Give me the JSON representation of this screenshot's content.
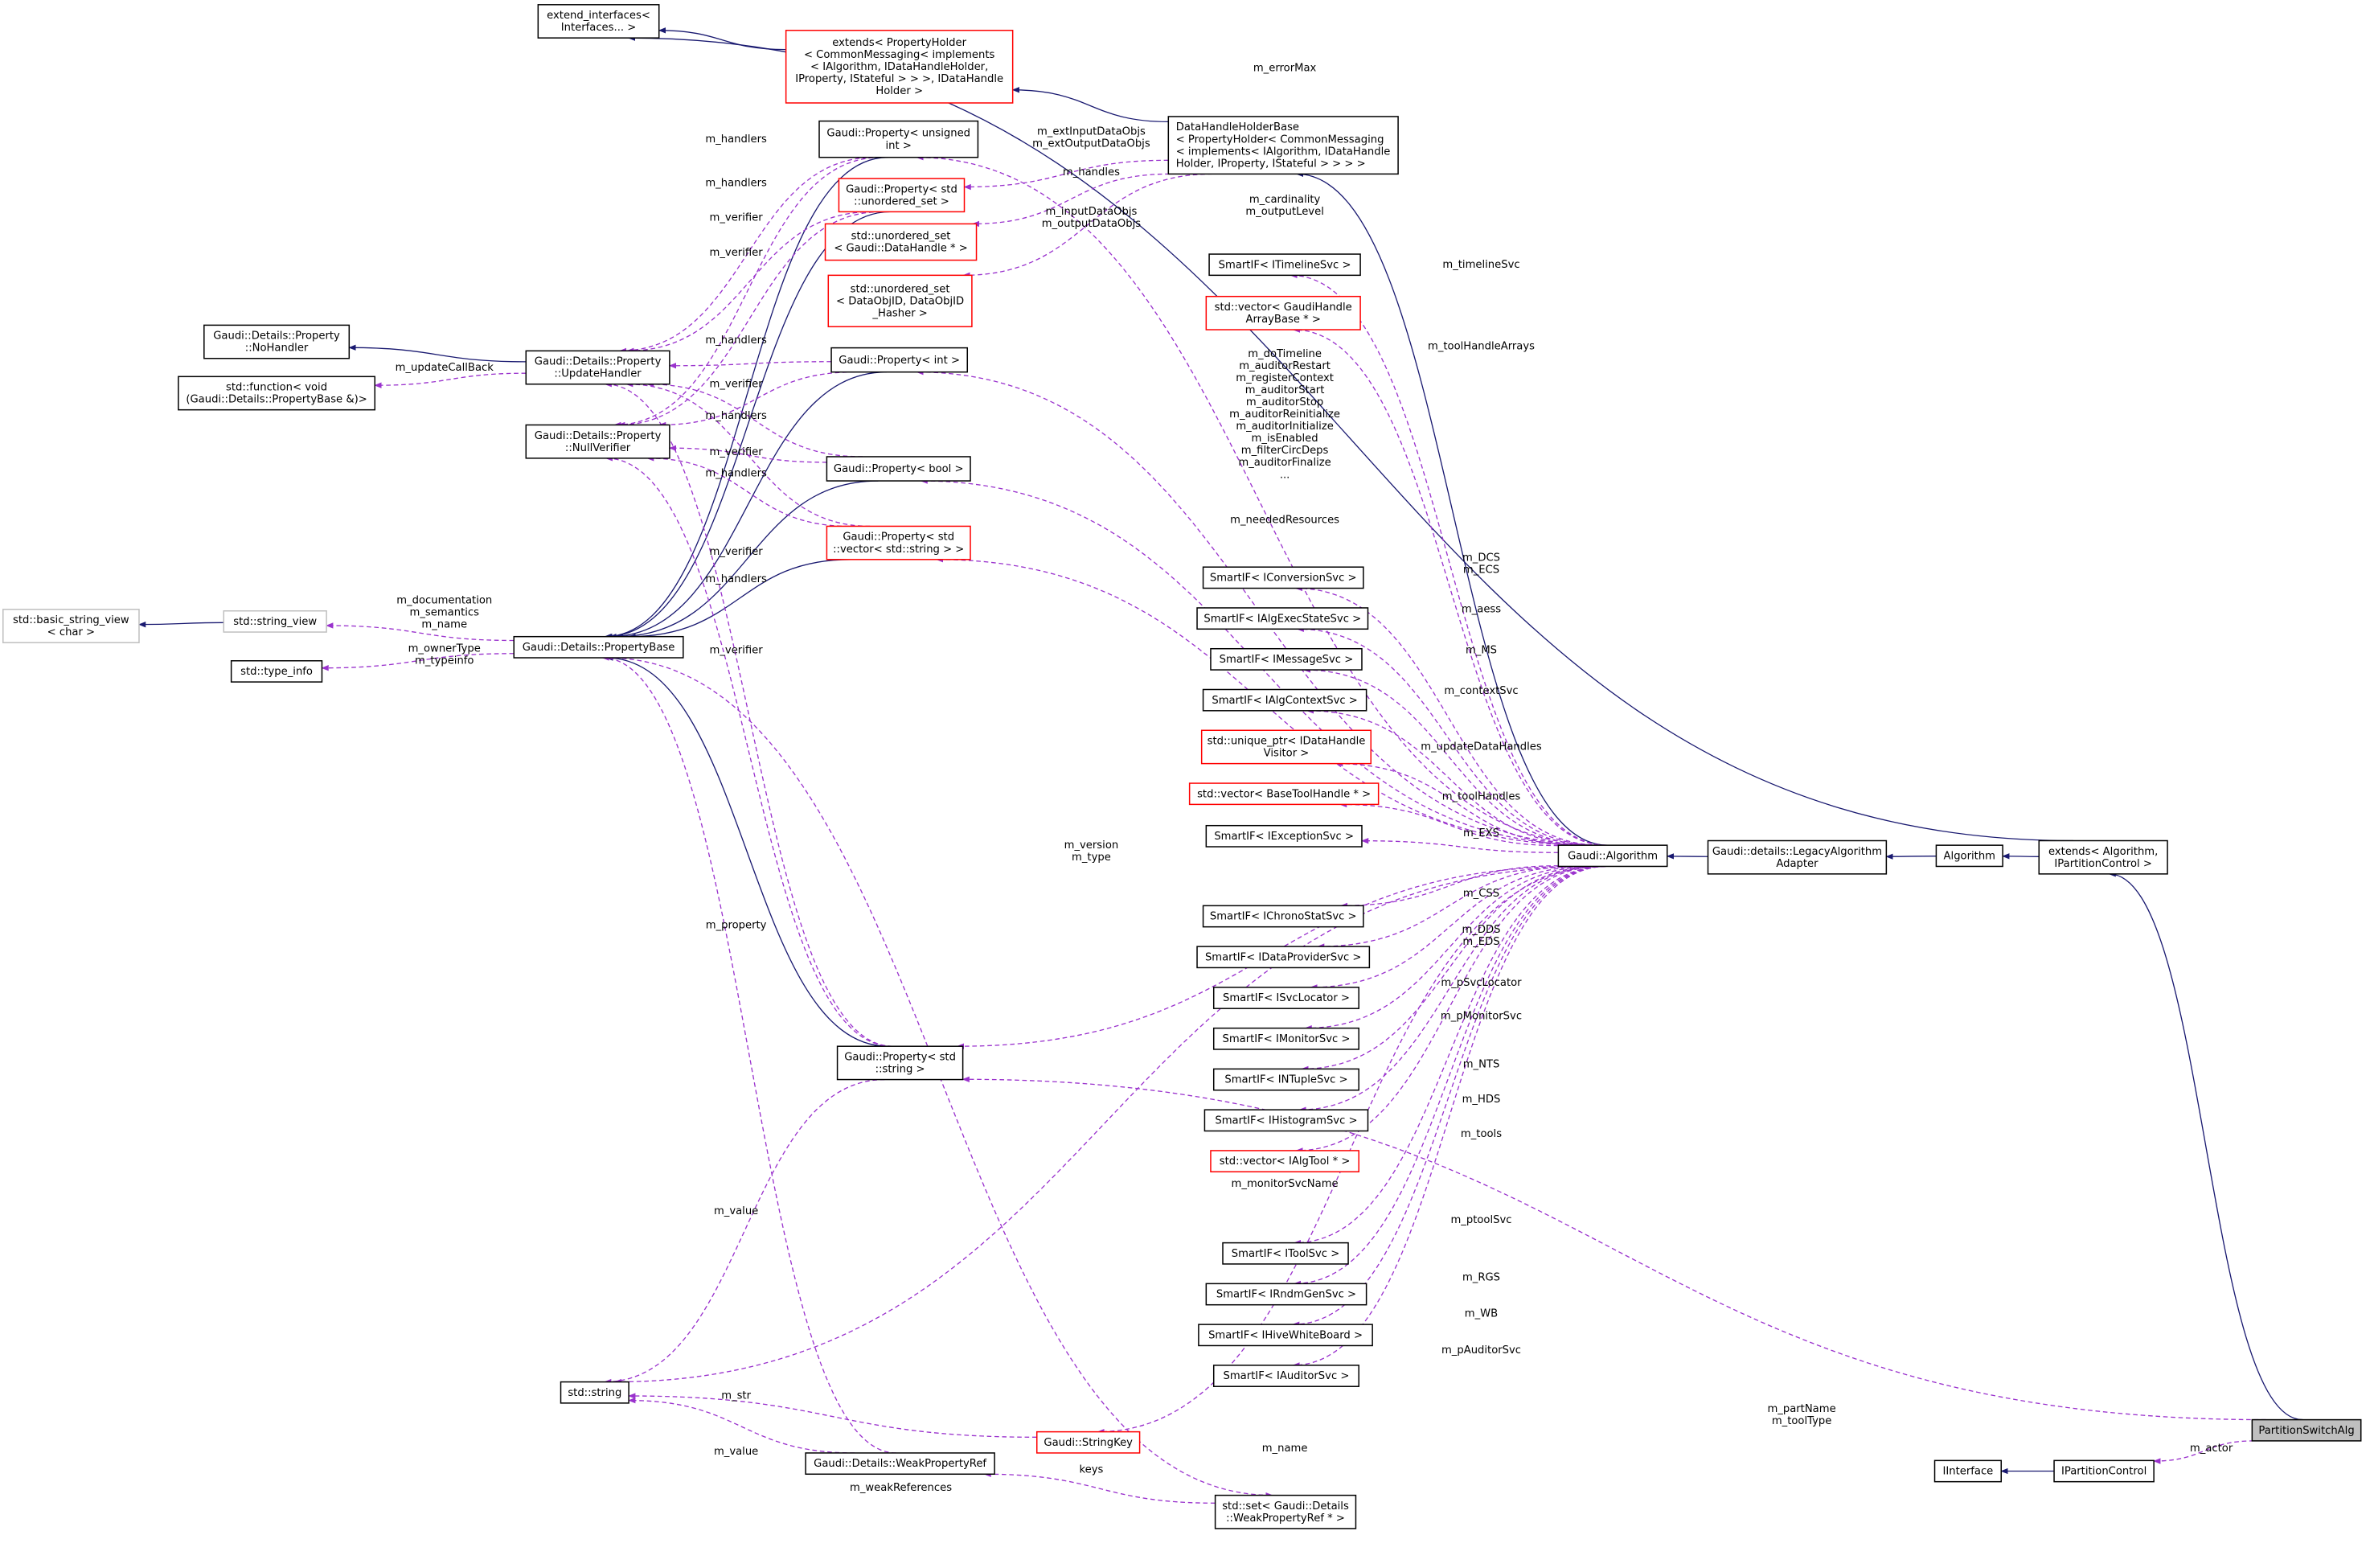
{
  "colors": {
    "uses_edge": "#9a32cd",
    "inherit_edge": "#191970",
    "incomplete_border": "#ff0000",
    "external_border": "#bfbfbf",
    "current_fill": "#bfbfbf"
  },
  "nodes": [
    {
      "id": "extend_interfaces",
      "lines": [
        "extend_interfaces<",
        "Interfaces... >"
      ],
      "style": "normal"
    },
    {
      "id": "extends_propholder",
      "lines": [
        "extends< PropertyHolder",
        "< CommonMessaging< implements",
        "< IAlgorithm, IDataHandleHolder,",
        "IProperty, IStateful > > >, IDataHandle",
        "Holder >"
      ],
      "style": "red"
    },
    {
      "id": "prop_uint",
      "lines": [
        "Gaudi::Property< unsigned",
        "int >"
      ],
      "style": "normal"
    },
    {
      "id": "prop_uset",
      "lines": [
        "Gaudi::Property< std",
        "::unordered_set >"
      ],
      "style": "red"
    },
    {
      "id": "uset_datahandle",
      "lines": [
        "std::unordered_set",
        "< Gaudi::DataHandle * >"
      ],
      "style": "red"
    },
    {
      "id": "uset_dataobjid",
      "lines": [
        "std::unordered_set",
        "< DataObjID, DataObjID",
        "_Hasher >"
      ],
      "style": "red"
    },
    {
      "id": "dhhb",
      "lines": [
        "DataHandleHolderBase",
        "< PropertyHolder< CommonMessaging",
        "< implements< IAlgorithm, IDataHandle",
        "Holder, IProperty, IStateful > > > >"
      ],
      "style": "normal",
      "align": "left"
    },
    {
      "id": "timeline",
      "lines": [
        "SmartIF< ITimelineSvc >"
      ],
      "style": "normal"
    },
    {
      "id": "vec_gha",
      "lines": [
        "std::vector< GaudiHandle",
        "ArrayBase * >"
      ],
      "style": "red"
    },
    {
      "id": "nohandler",
      "lines": [
        "Gaudi::Details::Property",
        "::NoHandler"
      ],
      "style": "normal"
    },
    {
      "id": "stdfunction",
      "lines": [
        "std::function< void",
        "(Gaudi::Details::PropertyBase &)>"
      ],
      "style": "normal"
    },
    {
      "id": "updatehandler",
      "lines": [
        "Gaudi::Details::Property",
        "::UpdateHandler"
      ],
      "style": "normal"
    },
    {
      "id": "nullverifier",
      "lines": [
        "Gaudi::Details::Property",
        "::NullVerifier"
      ],
      "style": "normal"
    },
    {
      "id": "prop_int",
      "lines": [
        "Gaudi::Property< int >"
      ],
      "style": "normal"
    },
    {
      "id": "prop_bool",
      "lines": [
        "Gaudi::Property< bool >"
      ],
      "style": "normal"
    },
    {
      "id": "prop_vecstr",
      "lines": [
        "Gaudi::Property< std",
        "::vector< std::string > >"
      ],
      "style": "red"
    },
    {
      "id": "basic_string_view",
      "lines": [
        "std::basic_string_view",
        "< char >"
      ],
      "style": "gray"
    },
    {
      "id": "string_view",
      "lines": [
        "std::string_view"
      ],
      "style": "gray"
    },
    {
      "id": "propertybase",
      "lines": [
        "Gaudi::Details::PropertyBase"
      ],
      "style": "normal"
    },
    {
      "id": "type_info",
      "lines": [
        "std::type_info"
      ],
      "style": "normal"
    },
    {
      "id": "conversion",
      "lines": [
        "SmartIF< IConversionSvc >"
      ],
      "style": "normal"
    },
    {
      "id": "execstate",
      "lines": [
        "SmartIF< IAlgExecStateSvc >"
      ],
      "style": "normal"
    },
    {
      "id": "message",
      "lines": [
        "SmartIF< IMessageSvc >"
      ],
      "style": "normal"
    },
    {
      "id": "algcontext",
      "lines": [
        "SmartIF< IAlgContextSvc >"
      ],
      "style": "normal"
    },
    {
      "id": "uptr_visitor",
      "lines": [
        "std::unique_ptr< IDataHandle",
        "Visitor >"
      ],
      "style": "red"
    },
    {
      "id": "vec_bth",
      "lines": [
        "std::vector< BaseToolHandle * >"
      ],
      "style": "red"
    },
    {
      "id": "exception",
      "lines": [
        "SmartIF< IExceptionSvc >"
      ],
      "style": "normal"
    },
    {
      "id": "gaudi_algorithm",
      "lines": [
        "Gaudi::Algorithm"
      ],
      "style": "normal"
    },
    {
      "id": "legacy",
      "lines": [
        "Gaudi::details::LegacyAlgorithm",
        "Adapter"
      ],
      "style": "normal"
    },
    {
      "id": "algorithm",
      "lines": [
        "Algorithm"
      ],
      "style": "normal"
    },
    {
      "id": "extends_alg",
      "lines": [
        "extends< Algorithm,",
        "IPartitionControl >"
      ],
      "style": "normal"
    },
    {
      "id": "chrono",
      "lines": [
        "SmartIF< IChronoStatSvc >"
      ],
      "style": "normal"
    },
    {
      "id": "dataprovider",
      "lines": [
        "SmartIF< IDataProviderSvc >"
      ],
      "style": "normal"
    },
    {
      "id": "svclocator",
      "lines": [
        "SmartIF< ISvcLocator >"
      ],
      "style": "normal"
    },
    {
      "id": "monitor",
      "lines": [
        "SmartIF< IMonitorSvc >"
      ],
      "style": "normal"
    },
    {
      "id": "ntuple",
      "lines": [
        "SmartIF< INTupleSvc >"
      ],
      "style": "normal"
    },
    {
      "id": "histogram",
      "lines": [
        "SmartIF< IHistogramSvc >"
      ],
      "style": "normal"
    },
    {
      "id": "vec_algtool",
      "lines": [
        "std::vector< IAlgTool * >"
      ],
      "style": "red"
    },
    {
      "id": "prop_string",
      "lines": [
        "Gaudi::Property< std",
        "::string >"
      ],
      "style": "normal"
    },
    {
      "id": "toolsvc",
      "lines": [
        "SmartIF< IToolSvc >"
      ],
      "style": "normal"
    },
    {
      "id": "rndmgen",
      "lines": [
        "SmartIF< IRndmGenSvc >"
      ],
      "style": "normal"
    },
    {
      "id": "whiteboard",
      "lines": [
        "SmartIF< IHiveWhiteBoard >"
      ],
      "style": "normal"
    },
    {
      "id": "auditor",
      "lines": [
        "SmartIF< IAuditorSvc >"
      ],
      "style": "normal"
    },
    {
      "id": "std_string",
      "lines": [
        "std::string"
      ],
      "style": "normal"
    },
    {
      "id": "stringkey",
      "lines": [
        "Gaudi::StringKey"
      ],
      "style": "red"
    },
    {
      "id": "weakpropref",
      "lines": [
        "Gaudi::Details::WeakPropertyRef"
      ],
      "style": "normal"
    },
    {
      "id": "set_weakref",
      "lines": [
        "std::set< Gaudi::Details",
        "::WeakPropertyRef * >"
      ],
      "style": "normal"
    },
    {
      "id": "partitionswitchalg",
      "lines": [
        "PartitionSwitchAlg"
      ],
      "style": "current"
    },
    {
      "id": "iinterface",
      "lines": [
        "IInterface"
      ],
      "style": "normal"
    },
    {
      "id": "ipartitioncontrol",
      "lines": [
        "IPartitionControl"
      ],
      "style": "normal"
    }
  ],
  "edges": [
    {
      "id": "e1",
      "from": "extends_propholder",
      "to": "extend_interfaces",
      "kind": "inherit",
      "labels": []
    },
    {
      "id": "e2",
      "from": "extends_alg",
      "to": "extend_interfaces",
      "kind": "inherit",
      "labels": []
    },
    {
      "id": "e3",
      "from": "dhhb",
      "to": "extends_propholder",
      "kind": "inherit",
      "labels": []
    },
    {
      "id": "e4",
      "from": "gaudi_algorithm",
      "to": "dhhb",
      "kind": "inherit",
      "labels": []
    },
    {
      "id": "e5",
      "from": "legacy",
      "to": "gaudi_algorithm",
      "kind": "inherit",
      "labels": []
    },
    {
      "id": "e6",
      "from": "algorithm",
      "to": "legacy",
      "kind": "inherit",
      "labels": []
    },
    {
      "id": "e7",
      "from": "extends_alg",
      "to": "algorithm",
      "kind": "inherit",
      "labels": []
    },
    {
      "id": "e8",
      "from": "partitionswitchalg",
      "to": "extends_alg",
      "kind": "inherit",
      "labels": []
    },
    {
      "id": "e9",
      "from": "ipartitioncontrol",
      "to": "iinterface",
      "kind": "inherit",
      "labels": []
    },
    {
      "id": "e10",
      "from": "updatehandler",
      "to": "nohandler",
      "kind": "inherit",
      "labels": []
    },
    {
      "id": "e11",
      "from": "string_view",
      "to": "basic_string_view",
      "kind": "inherit",
      "labels": []
    },
    {
      "id": "e12",
      "from": "prop_uint",
      "to": "propertybase",
      "kind": "inherit",
      "labels": []
    },
    {
      "id": "e13",
      "from": "prop_uset",
      "to": "propertybase",
      "kind": "inherit",
      "labels": []
    },
    {
      "id": "e14",
      "from": "prop_int",
      "to": "propertybase",
      "kind": "inherit",
      "labels": []
    },
    {
      "id": "e15",
      "from": "prop_bool",
      "to": "propertybase",
      "kind": "inherit",
      "labels": []
    },
    {
      "id": "e16",
      "from": "prop_vecstr",
      "to": "propertybase",
      "kind": "inherit",
      "labels": []
    },
    {
      "id": "e17",
      "from": "prop_string",
      "to": "propertybase",
      "kind": "inherit",
      "labels": []
    },
    {
      "id": "u1",
      "from": "gaudi_algorithm",
      "to": "prop_uint",
      "kind": "uses",
      "labels": [
        "m_errorMax"
      ]
    },
    {
      "id": "u2",
      "from": "dhhb",
      "to": "prop_uset",
      "kind": "uses",
      "labels": [
        "m_extInputDataObjs",
        "m_extOutputDataObjs"
      ]
    },
    {
      "id": "u3",
      "from": "dhhb",
      "to": "uset_datahandle",
      "kind": "uses",
      "labels": [
        "m_handles"
      ]
    },
    {
      "id": "u4",
      "from": "dhhb",
      "to": "uset_dataobjid",
      "kind": "uses",
      "labels": [
        "m_inputDataObjs",
        "m_outputDataObjs"
      ]
    },
    {
      "id": "u5",
      "from": "gaudi_algorithm",
      "to": "prop_int",
      "kind": "uses",
      "labels": [
        "m_cardinality",
        "m_outputLevel"
      ]
    },
    {
      "id": "u6",
      "from": "gaudi_algorithm",
      "to": "timeline",
      "kind": "uses",
      "labels": [
        "m_timelineSvc"
      ]
    },
    {
      "id": "u7",
      "from": "gaudi_algorithm",
      "to": "vec_gha",
      "kind": "uses",
      "labels": [
        "m_toolHandleArrays"
      ]
    },
    {
      "id": "u8",
      "from": "gaudi_algorithm",
      "to": "prop_bool",
      "kind": "uses",
      "labels": [
        "m_doTimeline",
        "m_auditorRestart",
        "m_registerContext",
        "m_auditorStart",
        "m_auditorStop",
        "m_auditorReinitialize",
        "m_auditorInitialize",
        "m_isEnabled",
        "m_filterCircDeps",
        "m_auditorFinalize",
        "..."
      ]
    },
    {
      "id": "u9",
      "from": "gaudi_algorithm",
      "to": "prop_vecstr",
      "kind": "uses",
      "labels": [
        "m_neededResources"
      ]
    },
    {
      "id": "u10",
      "from": "gaudi_algorithm",
      "to": "conversion",
      "kind": "uses",
      "labels": [
        "m_DCS",
        "m_ECS"
      ]
    },
    {
      "id": "u11",
      "from": "gaudi_algorithm",
      "to": "execstate",
      "kind": "uses",
      "labels": [
        "m_aess"
      ]
    },
    {
      "id": "u12",
      "from": "gaudi_algorithm",
      "to": "message",
      "kind": "uses",
      "labels": [
        "m_MS"
      ]
    },
    {
      "id": "u13",
      "from": "gaudi_algorithm",
      "to": "algcontext",
      "kind": "uses",
      "labels": [
        "m_contextSvc"
      ]
    },
    {
      "id": "u14",
      "from": "gaudi_algorithm",
      "to": "uptr_visitor",
      "kind": "uses",
      "labels": [
        "m_updateDataHandles"
      ]
    },
    {
      "id": "u15",
      "from": "gaudi_algorithm",
      "to": "vec_bth",
      "kind": "uses",
      "labels": [
        "m_toolHandles"
      ]
    },
    {
      "id": "u16",
      "from": "gaudi_algorithm",
      "to": "exception",
      "kind": "uses",
      "labels": [
        "m_EXS"
      ]
    },
    {
      "id": "u17",
      "from": "gaudi_algorithm",
      "to": "std_string",
      "kind": "uses",
      "labels": [
        "m_version",
        "m_type"
      ]
    },
    {
      "id": "u18",
      "from": "gaudi_algorithm",
      "to": "chrono",
      "kind": "uses",
      "labels": [
        "m_CSS"
      ]
    },
    {
      "id": "u19",
      "from": "gaudi_algorithm",
      "to": "dataprovider",
      "kind": "uses",
      "labels": [
        "m_DDS",
        "m_EDS"
      ]
    },
    {
      "id": "u20",
      "from": "gaudi_algorithm",
      "to": "svclocator",
      "kind": "uses",
      "labels": [
        "m_pSvcLocator"
      ]
    },
    {
      "id": "u21",
      "from": "gaudi_algorithm",
      "to": "monitor",
      "kind": "uses",
      "labels": [
        "m_pMonitorSvc"
      ]
    },
    {
      "id": "u22",
      "from": "gaudi_algorithm",
      "to": "ntuple",
      "kind": "uses",
      "labels": [
        "m_NTS"
      ]
    },
    {
      "id": "u23",
      "from": "gaudi_algorithm",
      "to": "histogram",
      "kind": "uses",
      "labels": [
        "m_HDS"
      ]
    },
    {
      "id": "u24",
      "from": "gaudi_algorithm",
      "to": "vec_algtool",
      "kind": "uses",
      "labels": [
        "m_tools"
      ]
    },
    {
      "id": "u25",
      "from": "gaudi_algorithm",
      "to": "prop_string",
      "kind": "uses",
      "labels": [
        "m_monitorSvcName"
      ]
    },
    {
      "id": "u26",
      "from": "gaudi_algorithm",
      "to": "toolsvc",
      "kind": "uses",
      "labels": [
        "m_ptoolSvc"
      ]
    },
    {
      "id": "u27",
      "from": "gaudi_algorithm",
      "to": "rndmgen",
      "kind": "uses",
      "labels": [
        "m_RGS"
      ]
    },
    {
      "id": "u28",
      "from": "gaudi_algorithm",
      "to": "whiteboard",
      "kind": "uses",
      "labels": [
        "m_WB"
      ]
    },
    {
      "id": "u29",
      "from": "gaudi_algorithm",
      "to": "auditor",
      "kind": "uses",
      "labels": [
        "m_pAuditorSvc"
      ]
    },
    {
      "id": "u30",
      "from": "gaudi_algorithm",
      "to": "stringkey",
      "kind": "uses",
      "labels": [
        "m_name"
      ]
    },
    {
      "id": "u31",
      "from": "partitionswitchalg",
      "to": "prop_string",
      "kind": "uses",
      "labels": [
        "m_partName",
        "m_toolType"
      ]
    },
    {
      "id": "u32",
      "from": "partitionswitchalg",
      "to": "ipartitioncontrol",
      "kind": "uses",
      "labels": [
        "m_actor"
      ]
    },
    {
      "id": "u33",
      "from": "prop_uint",
      "to": "updatehandler",
      "kind": "uses",
      "labels": [
        "m_handlers"
      ]
    },
    {
      "id": "u34",
      "from": "prop_uint",
      "to": "nullverifier",
      "kind": "uses",
      "labels": [
        "m_verifier"
      ]
    },
    {
      "id": "u35",
      "from": "prop_uset",
      "to": "updatehandler",
      "kind": "uses",
      "labels": [
        "m_handlers"
      ]
    },
    {
      "id": "u36",
      "from": "prop_uset",
      "to": "nullverifier",
      "kind": "uses",
      "labels": [
        "m_verifier"
      ]
    },
    {
      "id": "u37",
      "from": "prop_int",
      "to": "updatehandler",
      "kind": "uses",
      "labels": [
        "m_handlers"
      ]
    },
    {
      "id": "u38",
      "from": "prop_int",
      "to": "nullverifier",
      "kind": "uses",
      "labels": [
        "m_verifier"
      ]
    },
    {
      "id": "u39",
      "from": "prop_bool",
      "to": "updatehandler",
      "kind": "uses",
      "labels": [
        "m_handlers"
      ]
    },
    {
      "id": "u40",
      "from": "prop_bool",
      "to": "nullverifier",
      "kind": "uses",
      "labels": [
        "m_verifier"
      ]
    },
    {
      "id": "u41",
      "from": "prop_vecstr",
      "to": "updatehandler",
      "kind": "uses",
      "labels": [
        "m_handlers"
      ]
    },
    {
      "id": "u42",
      "from": "prop_vecstr",
      "to": "nullverifier",
      "kind": "uses",
      "labels": [
        "m_verifier"
      ]
    },
    {
      "id": "u43",
      "from": "prop_string",
      "to": "updatehandler",
      "kind": "uses",
      "labels": [
        "m_handlers"
      ]
    },
    {
      "id": "u44",
      "from": "prop_string",
      "to": "nullverifier",
      "kind": "uses",
      "labels": [
        "m_verifier"
      ]
    },
    {
      "id": "u45",
      "from": "prop_string",
      "to": "std_string",
      "kind": "uses",
      "labels": [
        "m_value"
      ]
    },
    {
      "id": "u46",
      "from": "updatehandler",
      "to": "stdfunction",
      "kind": "uses",
      "labels": [
        "m_updateCallBack"
      ]
    },
    {
      "id": "u47",
      "from": "propertybase",
      "to": "string_view",
      "kind": "uses",
      "labels": [
        "m_documentation",
        "m_semantics",
        "m_name"
      ]
    },
    {
      "id": "u48",
      "from": "propertybase",
      "to": "type_info",
      "kind": "uses",
      "labels": [
        "m_ownerType",
        "m_typeinfo"
      ]
    },
    {
      "id": "u49",
      "from": "weakpropref",
      "to": "propertybase",
      "kind": "uses",
      "labels": [
        "m_property"
      ]
    },
    {
      "id": "u50",
      "from": "propertybase",
      "to": "set_weakref",
      "kind": "uses",
      "labels": [
        "m_weakReferences"
      ]
    },
    {
      "id": "u51",
      "from": "set_weakref",
      "to": "weakpropref",
      "kind": "uses",
      "labels": [
        "keys"
      ]
    },
    {
      "id": "u52",
      "from": "stringkey",
      "to": "std_string",
      "kind": "uses",
      "labels": [
        "m_str"
      ]
    },
    {
      "id": "u53",
      "from": "weakpropref",
      "to": "std_string",
      "kind": "uses",
      "labels": [
        "m_value"
      ]
    }
  ]
}
